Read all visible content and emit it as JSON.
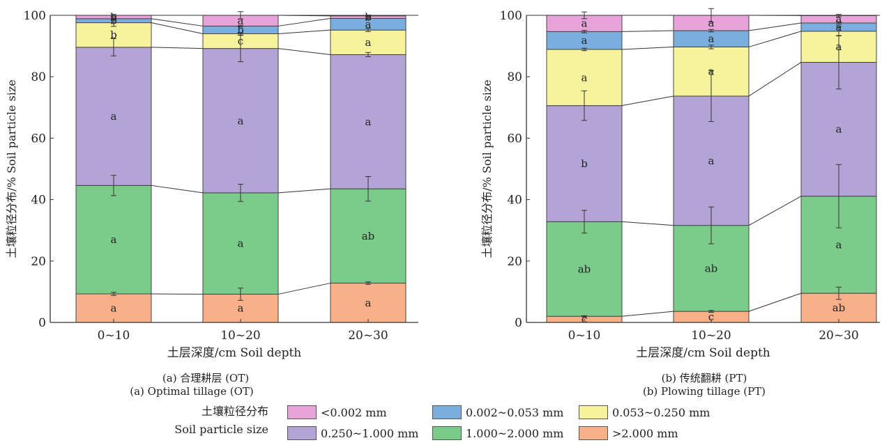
{
  "colors": {
    "lt_0_002": "#e7a4d9",
    "r_0_002_0_053": "#7aaee0",
    "r_0_053_0_250": "#f7f39c",
    "r_0_250_1_000": "#b3a4d6",
    "r_1_000_2_000": "#7bcb8a",
    "gt_2_000": "#f8b088"
  },
  "legend": {
    "title_cn": "土壤粒径分布",
    "title_en": "Soil particle size",
    "items": [
      {
        "key": "lt_0_002",
        "label": "<0.002 mm"
      },
      {
        "key": "r_0_002_0_053",
        "label": "0.002~0.053 mm"
      },
      {
        "key": "r_0_053_0_250",
        "label": "0.053~0.250 mm"
      },
      {
        "key": "r_0_250_1_000",
        "label": "0.250~1.000 mm"
      },
      {
        "key": "r_1_000_2_000",
        "label": "1.000~2.000 mm"
      },
      {
        "key": "gt_2_000",
        "label": ">2.000 mm"
      }
    ]
  },
  "chart_data": [
    {
      "type": "bar",
      "stacked": true,
      "caption_cn": "(a)  合理耕层 (OT)",
      "caption_en": "(a)  Optimal tillage (OT)",
      "xlabel": "土层深度/cm Soil depth",
      "ylabel": "土壤粒径分布/% Soil particle size",
      "ylim": [
        0,
        100
      ],
      "yticks": [
        0,
        20,
        40,
        60,
        80,
        100
      ],
      "categories": [
        "0~10",
        "10~20",
        "20~30"
      ],
      "series": [
        {
          "key": "gt_2_000",
          "values": [
            9.3,
            9.2,
            12.8
          ],
          "errors": [
            0.5,
            2.0,
            0.4
          ],
          "letters": [
            "a",
            "a",
            "a"
          ]
        },
        {
          "key": "r_1_000_2_000",
          "values": [
            35.3,
            33.0,
            30.7
          ],
          "errors": [
            3.3,
            2.8,
            4.0
          ],
          "letters": [
            "a",
            "a",
            "ab"
          ]
        },
        {
          "key": "r_0_250_1_000",
          "values": [
            45.0,
            47.0,
            43.7
          ],
          "errors": [
            2.8,
            4.3,
            0.7
          ],
          "letters": [
            "a",
            "a",
            "a"
          ]
        },
        {
          "key": "r_0_053_0_250",
          "values": [
            8.0,
            4.8,
            8.0
          ],
          "errors": [
            1.2,
            0.4,
            0.5
          ],
          "letters": [
            "b",
            "c",
            "a"
          ]
        },
        {
          "key": "r_0_002_0_053",
          "values": [
            1.3,
            2.5,
            3.8
          ],
          "errors": [
            0.3,
            0.3,
            0.4
          ],
          "letters": [
            "b",
            "b",
            "a"
          ]
        },
        {
          "key": "lt_0_002",
          "values": [
            1.1,
            3.5,
            0.8
          ],
          "errors": [
            0.3,
            1.2,
            0.3
          ],
          "letters": [
            "b",
            "a",
            "b"
          ]
        }
      ]
    },
    {
      "type": "bar",
      "stacked": true,
      "caption_cn": "(b)  传统翻耕 (PT)",
      "caption_en": "(b)  Plowing tillage (PT)",
      "xlabel": "土层深度/cm Soil depth",
      "ylabel": "土壤粒径分布/% Soil particle size",
      "ylim": [
        0,
        100
      ],
      "yticks": [
        0,
        20,
        40,
        60,
        80,
        100
      ],
      "categories": [
        "0~10",
        "10~20",
        "20~30"
      ],
      "series": [
        {
          "key": "gt_2_000",
          "values": [
            2.0,
            3.6,
            9.5
          ],
          "errors": [
            0.2,
            0.3,
            2.0
          ],
          "letters": [
            "c",
            "c",
            "ab"
          ]
        },
        {
          "key": "r_1_000_2_000",
          "values": [
            30.8,
            28.0,
            31.6
          ],
          "errors": [
            3.7,
            6.0,
            10.3
          ],
          "letters": [
            "ab",
            "ab",
            "a"
          ]
        },
        {
          "key": "r_0_250_1_000",
          "values": [
            37.8,
            42.1,
            43.6
          ],
          "errors": [
            4.8,
            8.3,
            8.7
          ],
          "letters": [
            "b",
            "a",
            "a"
          ]
        },
        {
          "key": "r_0_053_0_250",
          "values": [
            18.3,
            16.0,
            10.1
          ],
          "errors": [
            0.4,
            0.6,
            1.5
          ],
          "letters": [
            "a",
            "a",
            "a"
          ]
        },
        {
          "key": "r_0_002_0_053",
          "values": [
            5.8,
            5.3,
            2.7
          ],
          "errors": [
            0.4,
            0.4,
            0.4
          ],
          "letters": [
            "a",
            "a",
            "a"
          ]
        },
        {
          "key": "lt_0_002",
          "values": [
            5.3,
            5.0,
            2.4
          ],
          "errors": [
            1.1,
            2.2,
            0.4
          ],
          "letters": [
            "a",
            "a",
            "a"
          ]
        }
      ]
    }
  ]
}
